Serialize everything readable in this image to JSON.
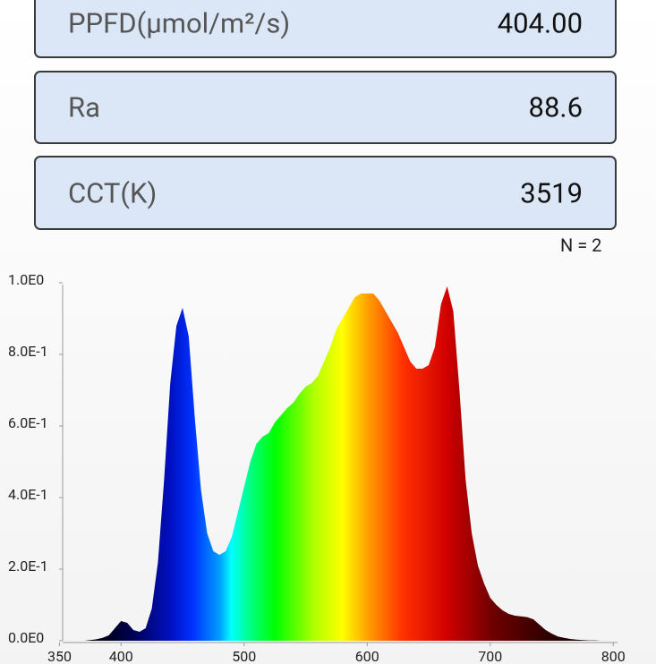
{
  "readings": [
    {
      "label": "PPFD(μmol/m²/s)",
      "value": "404.00"
    },
    {
      "label": "Ra",
      "value": "88.6"
    },
    {
      "label": "CCT(K)",
      "value": "3519"
    }
  ],
  "count": "N = 2",
  "chart_data": {
    "type": "area",
    "x": [
      350,
      355,
      360,
      365,
      370,
      375,
      380,
      385,
      390,
      395,
      400,
      405,
      410,
      415,
      420,
      425,
      430,
      435,
      440,
      445,
      450,
      455,
      460,
      465,
      470,
      475,
      480,
      485,
      490,
      495,
      500,
      505,
      510,
      515,
      520,
      525,
      530,
      535,
      540,
      545,
      550,
      555,
      560,
      565,
      570,
      575,
      580,
      585,
      590,
      595,
      600,
      605,
      610,
      615,
      620,
      625,
      630,
      635,
      640,
      645,
      650,
      655,
      660,
      665,
      670,
      675,
      680,
      685,
      690,
      695,
      700,
      705,
      710,
      715,
      720,
      725,
      730,
      735,
      740,
      745,
      750,
      755,
      760,
      765,
      770,
      775,
      780,
      785,
      790,
      795,
      800
    ],
    "values": [
      0,
      0,
      0,
      0,
      0,
      0.002,
      0.004,
      0.008,
      0.015,
      0.035,
      0.055,
      0.05,
      0.03,
      0.025,
      0.035,
      0.09,
      0.22,
      0.45,
      0.72,
      0.88,
      0.93,
      0.85,
      0.62,
      0.42,
      0.3,
      0.25,
      0.24,
      0.25,
      0.29,
      0.36,
      0.43,
      0.5,
      0.55,
      0.57,
      0.58,
      0.61,
      0.63,
      0.65,
      0.665,
      0.69,
      0.71,
      0.72,
      0.74,
      0.78,
      0.82,
      0.87,
      0.9,
      0.93,
      0.96,
      0.97,
      0.97,
      0.97,
      0.95,
      0.92,
      0.89,
      0.86,
      0.82,
      0.78,
      0.76,
      0.76,
      0.77,
      0.82,
      0.94,
      0.99,
      0.92,
      0.7,
      0.45,
      0.3,
      0.21,
      0.16,
      0.12,
      0.1,
      0.085,
      0.075,
      0.07,
      0.068,
      0.066,
      0.06,
      0.045,
      0.03,
      0.02,
      0.012,
      0.008,
      0.005,
      0.003,
      0.002,
      0.001,
      0.001,
      0,
      0,
      0
    ],
    "xlim": [
      350,
      800
    ],
    "xticks": [
      350,
      400,
      500,
      600,
      700,
      800
    ],
    "ylim": [
      0,
      1
    ],
    "yticks": [
      {
        "value": 1,
        "label": "1.0E0"
      },
      {
        "value": 0.8,
        "label": "8.0E-1"
      },
      {
        "value": 0.6,
        "label": "6.0E-1"
      },
      {
        "value": 0.4,
        "label": "4.0E-1"
      },
      {
        "value": 0.2,
        "label": "2.0E-1"
      },
      {
        "value": 0,
        "label": "0.0E0"
      }
    ]
  }
}
